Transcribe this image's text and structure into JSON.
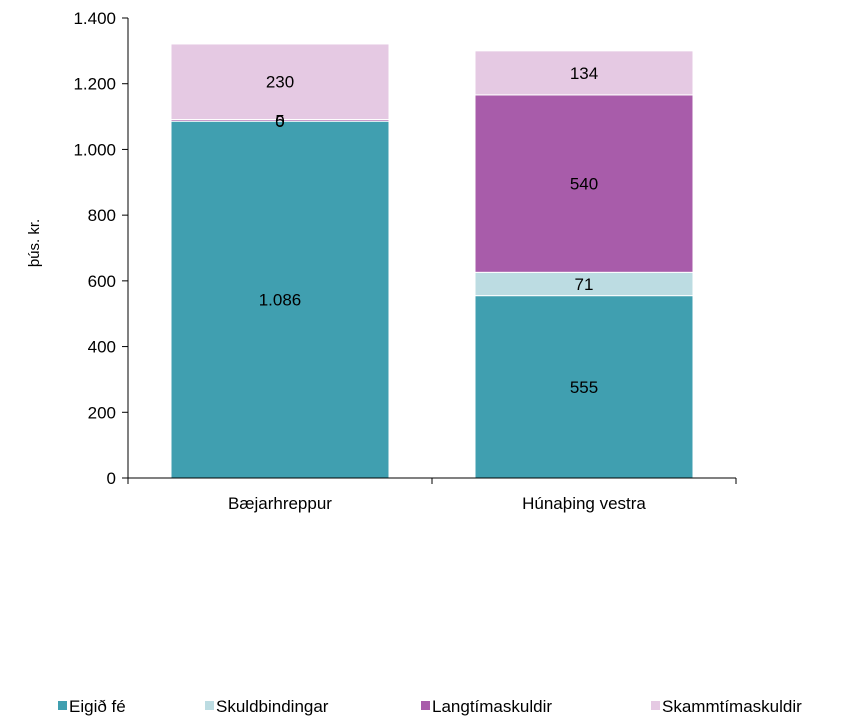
{
  "chart_data": {
    "type": "bar",
    "stacked": true,
    "ylabel": "þús. kr.",
    "ylim": [
      0,
      1400
    ],
    "y_ticks": [
      0,
      200,
      400,
      600,
      800,
      1000,
      1200,
      1400
    ],
    "y_tick_labels": [
      "0",
      "200",
      "400",
      "600",
      "800",
      "1.000",
      "1.200",
      "1.400"
    ],
    "categories": [
      "Bæjarhreppur",
      "Húnaþing vestra"
    ],
    "series": [
      {
        "name": "Eigið fé",
        "color": "#409fb0",
        "values": [
          1086,
          555
        ],
        "labels": [
          "1.086",
          "555"
        ]
      },
      {
        "name": "Skuldbindingar",
        "color": "#bcdce2",
        "values": [
          0,
          71
        ],
        "labels": [
          "0",
          "71"
        ]
      },
      {
        "name": "Langtímaskuldir",
        "color": "#a85caa",
        "values": [
          5,
          540
        ],
        "labels": [
          "5",
          "540"
        ]
      },
      {
        "name": "Skammtímaskuldir",
        "color": "#e5c9e3",
        "values": [
          230,
          134
        ],
        "labels": [
          "230",
          "134"
        ]
      }
    ],
    "legend_position": "bottom",
    "grid": false
  }
}
